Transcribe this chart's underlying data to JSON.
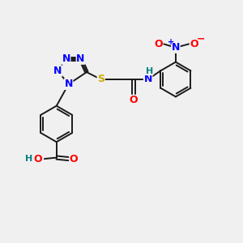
{
  "background_color": "#f0f0f0",
  "bond_color": "#1a1a1a",
  "atom_colors": {
    "N": "#0000FF",
    "O": "#FF0000",
    "S": "#CCAA00",
    "H": "#008080",
    "C": "#1a1a1a"
  },
  "font_size_atoms": 9,
  "font_size_small": 8,
  "figsize": [
    3.0,
    3.0
  ],
  "dpi": 100
}
